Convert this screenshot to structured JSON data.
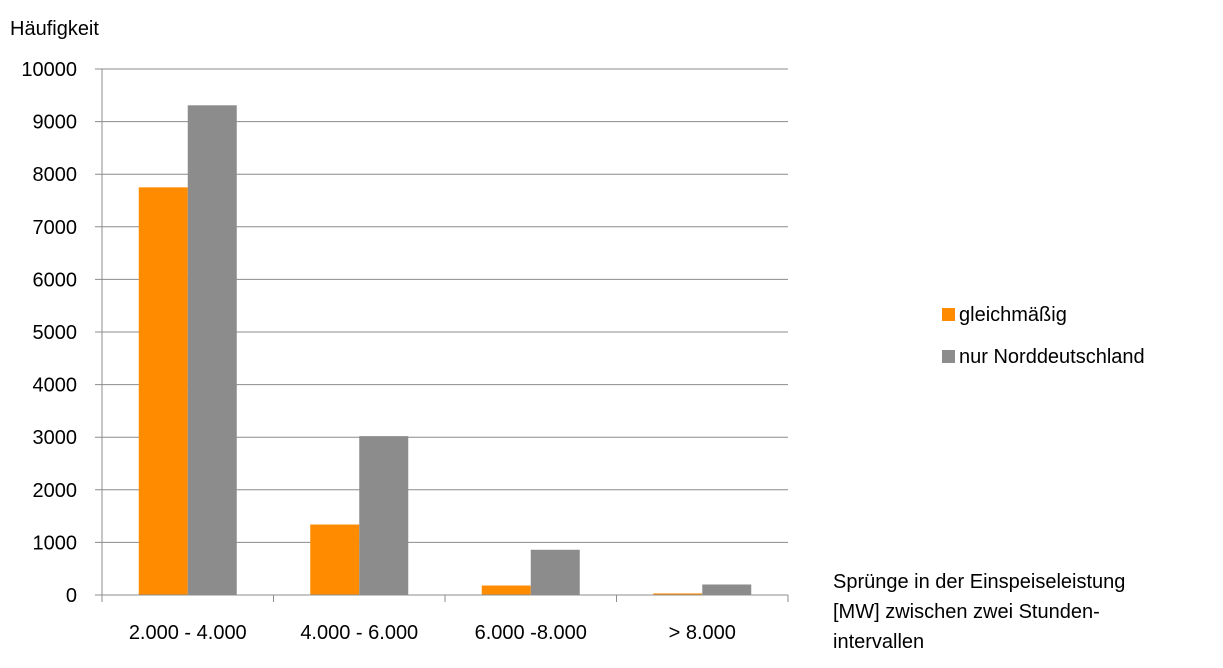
{
  "chart_data": {
    "type": "bar",
    "title": "",
    "ylabel": "Häufigkeit",
    "xlabel": "Sprünge in der Einspeiseleistung [MW] zwischen zwei Stunden-intervallen",
    "xlabel_lines": [
      "Sprünge in der Einspeiseleistung",
      "[MW] zwischen zwei Stunden-",
      "intervallen"
    ],
    "categories": [
      "2.000 - 4.000",
      "4.000 - 6.000",
      "6.000 -8.000",
      "> 8.000"
    ],
    "series": [
      {
        "name": "gleichmäßig",
        "color": "#ff8c00",
        "values": [
          7750,
          1340,
          180,
          30
        ]
      },
      {
        "name": "nur Norddeutschland",
        "color": "#8c8c8c",
        "values": [
          9310,
          3020,
          860,
          200
        ]
      }
    ],
    "ylim": [
      0,
      10000
    ],
    "yticks": [
      0,
      1000,
      2000,
      3000,
      4000,
      5000,
      6000,
      7000,
      8000,
      9000,
      10000
    ],
    "grid": true,
    "legend": "right"
  }
}
